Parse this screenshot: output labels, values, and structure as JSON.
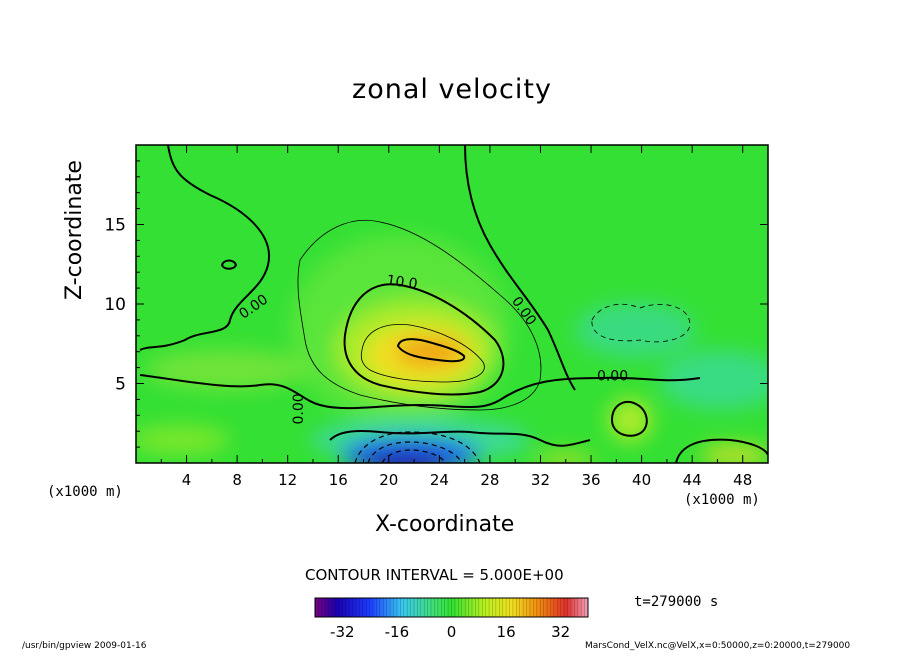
{
  "chart_data": {
    "type": "heatmap",
    "title": "zonal velocity",
    "xlabel": "X-coordinate",
    "ylabel": "Z-coordinate",
    "x_unit_label": "(x1000 m)",
    "y_unit_label": "(x1000 m)",
    "xlim": [
      0,
      50
    ],
    "ylim": [
      0,
      20
    ],
    "x_ticks": [
      "4",
      "8",
      "12",
      "16",
      "20",
      "24",
      "28",
      "32",
      "36",
      "40",
      "44",
      "48"
    ],
    "y_ticks": [
      "5",
      "10",
      "15"
    ],
    "contour_interval_text": "CONTOUR INTERVAL = 5.000E+00",
    "time_text": "t=279000  s",
    "colorbar": {
      "range": [
        -40,
        40
      ],
      "ticks": [
        "-32",
        "-16",
        "0",
        "16",
        "32"
      ]
    },
    "contour_labels": [
      {
        "text": "0.00",
        "x": 9.5,
        "z": 9.6,
        "rotate": -35
      },
      {
        "text": "10.0",
        "x": 21.0,
        "z": 11.1,
        "rotate": 8
      },
      {
        "text": "0.00",
        "x": 30.4,
        "z": 9.4,
        "rotate": 55
      },
      {
        "text": "0.00",
        "x": 37.7,
        "z": 5.2,
        "rotate": 0
      },
      {
        "text": "0.00",
        "x": 13.2,
        "z": 3.4,
        "rotate": -90
      }
    ],
    "features": [
      {
        "name": "positive jet core",
        "x": 23.5,
        "z": 7.0,
        "value": 20,
        "sx": 6.5,
        "sz": 2.1
      },
      {
        "name": "negative low-level core",
        "x": 23.0,
        "z": 0.3,
        "value": -34,
        "sx": 4.0,
        "sz": 1.2
      },
      {
        "name": "weak negative pocket",
        "x": 42.0,
        "z": 8.5,
        "value": -6,
        "sx": 5.0,
        "sz": 1.8
      },
      {
        "name": "surface positive patch right",
        "x": 46.0,
        "z": 0.8,
        "value": 8,
        "sx": 3.0,
        "sz": 1.0
      }
    ]
  },
  "colors": {
    "background_field": "#30e030",
    "contour": "#000000"
  },
  "footer": {
    "left": "/usr/bin/gpview   2009-01-16",
    "right": "MarsCond_VelX.nc@VelX,x=0:50000,z=0:20000,t=279000"
  }
}
